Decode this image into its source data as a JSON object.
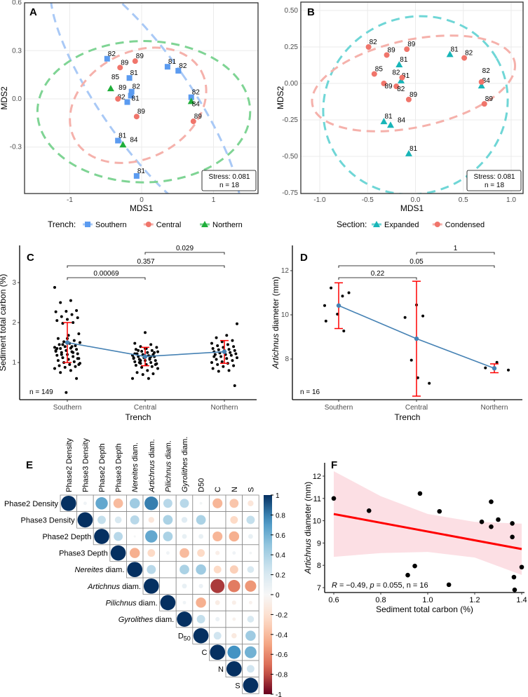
{
  "chart_data": [
    {
      "panel": "A",
      "type": "scatter",
      "xlabel": "MDS1",
      "ylabel": "MDS2",
      "xlim": [
        -1.6,
        1.6
      ],
      "ylim": [
        -0.59,
        0.6
      ],
      "xticks": [
        "-1",
        "0",
        "1"
      ],
      "xtick_values": [
        -1,
        0,
        1
      ],
      "yticks": [
        "-0.3",
        "0.0",
        "0.3",
        "0.6"
      ],
      "ytick_values": [
        -0.3,
        0,
        0.3,
        0.6
      ],
      "legend_title": "Trench:",
      "legend_position": "bottom",
      "stress_text": "Stress: 0.081",
      "n_text": "n = 18",
      "groups": [
        {
          "name": "Southern",
          "color": "#5b9bf0",
          "ellipse_color": "#a9c9f6",
          "marker": "square",
          "ellipse": {
            "cx": 0.05,
            "cy": 0.0,
            "rx": 0.62,
            "ry": 0.95,
            "angle_deg": -35
          },
          "points": [
            {
              "x": -0.48,
              "y": 0.25,
              "label": "82"
            },
            {
              "x": -0.17,
              "y": 0.13,
              "label": "81"
            },
            {
              "x": 0.36,
              "y": 0.2,
              "label": "81"
            },
            {
              "x": 0.51,
              "y": 0.175,
              "label": "82"
            },
            {
              "x": -0.14,
              "y": 0.045,
              "label": "82"
            },
            {
              "x": -0.15,
              "y": 0.02,
              "label": "81"
            },
            {
              "x": -0.2,
              "y": -0.02,
              "label": "82"
            },
            {
              "x": 0.69,
              "y": 0.01,
              "label": "82"
            },
            {
              "x": -0.33,
              "y": -0.26,
              "label": "81"
            },
            {
              "x": -0.07,
              "y": -0.48,
              "label": "81"
            }
          ]
        },
        {
          "name": "Central",
          "color": "#f0756b",
          "ellipse_color": "#f5b1ab",
          "marker": "circle",
          "ellipse": {
            "cx": -0.05,
            "cy": -0.04,
            "rx": 1.0,
            "ry": 0.33,
            "angle_deg": -28
          },
          "points": [
            {
              "x": -0.3,
              "y": 0.195,
              "label": "89"
            },
            {
              "x": -0.09,
              "y": 0.235,
              "label": "89"
            },
            {
              "x": -0.33,
              "y": 0.0,
              "label": "89"
            },
            {
              "x": -0.07,
              "y": -0.11,
              "label": "89"
            },
            {
              "x": 0.72,
              "y": -0.14,
              "label": "89"
            }
          ]
        },
        {
          "name": "Northern",
          "color": "#1fae3a",
          "ellipse_color": "#7fd494",
          "marker": "triangle",
          "ellipse": {
            "cx": 0.03,
            "cy": -0.08,
            "rx": 1.48,
            "ry": 0.44,
            "angle_deg": 0
          },
          "points": [
            {
              "x": -0.43,
              "y": 0.065,
              "label": "85"
            },
            {
              "x": 0.69,
              "y": -0.015,
              "label": "84"
            },
            {
              "x": -0.26,
              "y": -0.285,
              "label": "84"
            }
          ]
        }
      ]
    },
    {
      "panel": "B",
      "type": "scatter",
      "xlabel": "MDS1",
      "ylabel": "MDS2",
      "xlim": [
        -1.2,
        1.15
      ],
      "ylim": [
        -0.76,
        0.52
      ],
      "xticks": [
        "-1.0",
        "-0.5",
        "0.0",
        "0.5",
        "1.0"
      ],
      "xtick_values": [
        -1,
        -0.5,
        0,
        0.5,
        1
      ],
      "yticks": [
        "-0.75",
        "-0.50",
        "-0.25",
        "0.00",
        "0.25",
        "0.50"
      ],
      "ytick_values": [
        -0.75,
        -0.5,
        -0.25,
        0,
        0.25,
        0.5
      ],
      "legend_title": "Section:",
      "legend_position": "bottom",
      "stress_text": "Stress: 0.081",
      "n_text": "n = 18",
      "groups": [
        {
          "name": "Expanded",
          "color": "#17b5b8",
          "ellipse_color": "#6fd6d6",
          "marker": "triangle",
          "ellipse": {
            "cx": 0.0,
            "cy": -0.15,
            "rx": 0.98,
            "ry": 0.6,
            "angle_deg": -30
          },
          "points": [
            {
              "x": -0.17,
              "y": 0.13,
              "label": "81"
            },
            {
              "x": 0.36,
              "y": 0.2,
              "label": "81"
            },
            {
              "x": -0.15,
              "y": 0.02,
              "label": "81"
            },
            {
              "x": 0.69,
              "y": -0.015,
              "label": "84"
            },
            {
              "x": -0.33,
              "y": -0.26,
              "label": "81"
            },
            {
              "x": -0.26,
              "y": -0.285,
              "label": "84"
            },
            {
              "x": -0.07,
              "y": -0.48,
              "label": "81"
            }
          ]
        },
        {
          "name": "Condensed",
          "color": "#f0756b",
          "ellipse_color": "#f5b1ab",
          "marker": "circle",
          "ellipse": {
            "cx": -0.02,
            "cy": 0.0,
            "rx": 1.08,
            "ry": 0.3,
            "angle_deg": -12
          },
          "points": [
            {
              "x": -0.49,
              "y": 0.25,
              "label": "82"
            },
            {
              "x": -0.3,
              "y": 0.195,
              "label": "89"
            },
            {
              "x": -0.09,
              "y": 0.235,
              "label": "89"
            },
            {
              "x": -0.43,
              "y": 0.065,
              "label": "85"
            },
            {
              "x": -0.14,
              "y": 0.04,
              "label": "82"
            },
            {
              "x": -0.33,
              "y": 0.0,
              "label": "89"
            },
            {
              "x": -0.2,
              "y": -0.02,
              "label": "82"
            },
            {
              "x": -0.07,
              "y": -0.11,
              "label": "89"
            },
            {
              "x": 0.51,
              "y": 0.175,
              "label": "82"
            },
            {
              "x": 0.69,
              "y": 0.01,
              "label": "82"
            },
            {
              "x": 0.72,
              "y": -0.14,
              "label": "89"
            }
          ]
        }
      ]
    },
    {
      "panel": "C",
      "type": "scatter",
      "xlabel": "Trench",
      "ylabel": "Sediment total carbon (%)",
      "ylim": [
        0.1,
        3.85
      ],
      "yticks": [
        "1",
        "2",
        "3"
      ],
      "ytick_values": [
        1,
        2,
        3
      ],
      "categories": [
        "Southern",
        "Central",
        "Northern"
      ],
      "n_text": "n = 149",
      "means": [
        1.5,
        1.15,
        1.27
      ],
      "sd_low": [
        1.0,
        0.92,
        0.98
      ],
      "sd_high": [
        2.0,
        1.38,
        1.55
      ],
      "comparisons": [
        {
          "from": 0,
          "to": 1,
          "p": "0.00069"
        },
        {
          "from": 0,
          "to": 2,
          "p": "0.357"
        },
        {
          "from": 1,
          "to": 2,
          "p": "0.029"
        }
      ],
      "values": [
        [
          2.88,
          2.55,
          2.5,
          2.3,
          2.28,
          2.27,
          2.2,
          2.15,
          2.12,
          2.08,
          2.05,
          2.0,
          1.98,
          1.72,
          1.68,
          1.6,
          1.55,
          1.52,
          1.5,
          1.48,
          1.45,
          1.42,
          1.4,
          1.38,
          1.36,
          1.35,
          1.33,
          1.3,
          1.28,
          1.27,
          1.25,
          1.22,
          1.2,
          1.18,
          1.15,
          1.12,
          1.1,
          1.08,
          1.05,
          1.02,
          1.0,
          0.98,
          0.95,
          0.92,
          0.9,
          0.88,
          0.85,
          0.8,
          0.75,
          0.6,
          0.25,
          1.3,
          1.4,
          1.2,
          1.1,
          1.6,
          1.35,
          1.25,
          1.45,
          0.95
        ],
        [
          1.75,
          1.48,
          1.45,
          1.4,
          1.38,
          1.35,
          1.33,
          1.3,
          1.28,
          1.27,
          1.25,
          1.22,
          1.2,
          1.2,
          1.18,
          1.17,
          1.15,
          1.15,
          1.12,
          1.1,
          1.1,
          1.08,
          1.05,
          1.05,
          1.02,
          1.0,
          0.98,
          0.97,
          0.95,
          0.93,
          0.9,
          0.88,
          0.85,
          0.8,
          0.75,
          0.72,
          0.7,
          0.6,
          0.6,
          1.3,
          1.25,
          1.18,
          1.12,
          1.08,
          1.0,
          0.95,
          1.35,
          1.22,
          1.15,
          1.05
        ],
        [
          1.97,
          1.68,
          1.62,
          1.55,
          1.52,
          1.48,
          1.45,
          1.42,
          1.4,
          1.38,
          1.35,
          1.33,
          1.32,
          1.3,
          1.28,
          1.27,
          1.25,
          1.24,
          1.22,
          1.2,
          1.2,
          1.18,
          1.15,
          1.12,
          1.1,
          1.08,
          1.05,
          1.02,
          1.0,
          0.98,
          0.95,
          0.92,
          0.9,
          0.85,
          0.8,
          0.78,
          0.42,
          1.3,
          1.15
        ]
      ]
    },
    {
      "panel": "D",
      "type": "scatter",
      "xlabel": "Trench",
      "ylabel_italic": "Artichnus",
      "ylabel_rest": " diameter (mm)",
      "ylim": [
        6.0,
        13.0
      ],
      "yticks": [
        "8",
        "10",
        "12"
      ],
      "ytick_values": [
        8,
        10,
        12
      ],
      "categories": [
        "Southern",
        "Central",
        "Northern"
      ],
      "n_text": "n = 16",
      "means": [
        10.42,
        8.92,
        7.58
      ],
      "sd_low": [
        9.38,
        6.32,
        7.38
      ],
      "sd_high": [
        11.45,
        11.52,
        7.78
      ],
      "comparisons": [
        {
          "from": 0,
          "to": 1,
          "p": "0.22"
        },
        {
          "from": 0,
          "to": 2,
          "p": "0.05"
        },
        {
          "from": 1,
          "to": 2,
          "p": "1"
        }
      ],
      "values": [
        [
          10.42,
          10.85,
          11.22,
          11.0,
          10.03,
          9.72,
          9.27
        ],
        [
          10.45,
          9.88,
          9.95,
          7.95,
          6.9,
          7.15
        ],
        [
          7.5,
          7.85,
          7.6
        ]
      ]
    },
    {
      "panel": "E",
      "type": "heatmap",
      "subtype": "correlation-upper",
      "row_labels": [
        [
          "Phase2 Density",
          ""
        ],
        [
          "Phase3 Density",
          ""
        ],
        [
          "Phase2 Depth",
          ""
        ],
        [
          "Phase3 Depth",
          ""
        ],
        [
          "",
          "Nereites",
          " diam."
        ],
        [
          "",
          "Artichnus",
          " diam."
        ],
        [
          "",
          "Pilichnus",
          " diam."
        ],
        [
          "",
          "Gyrolithes",
          " diam."
        ],
        [
          "D",
          "50"
        ],
        [
          "C",
          ""
        ],
        [
          "N",
          ""
        ],
        [
          "S",
          ""
        ]
      ],
      "colorbar_ticks": [
        "1",
        "0.8",
        "0.6",
        "0.4",
        "0.2",
        "0",
        "-0.2",
        "-0.4",
        "-0.6",
        "-0.8",
        "-1"
      ],
      "colorbar_range": [
        -1,
        1
      ],
      "upper": [
        [
          1,
          0.05,
          0.65,
          -0.4,
          0.45,
          0.8,
          0.35,
          0.35,
          0.03,
          -0.42,
          -0.35,
          -0.15
        ],
        [
          1,
          0.3,
          0.2,
          0.35,
          -0.15,
          0.4,
          0.15,
          0.4,
          0,
          -0.25,
          0.3
        ],
        [
          1,
          0.35,
          0.02,
          0.65,
          0.4,
          0.1,
          0.1,
          -0.42,
          -0.45,
          0.1
        ],
        [
          1,
          -0.45,
          -0.25,
          0.05,
          -0.4,
          -0.25,
          -0.08,
          0.05,
          0.03
        ],
        [
          1,
          0.35,
          0,
          0.4,
          0.45,
          -0.25,
          -0.3,
          0.2
        ],
        [
          1,
          0,
          0.1,
          0.08,
          -0.85,
          -0.65,
          -0.55
        ],
        [
          1,
          0.05,
          -0.45,
          -0.1,
          -0.08,
          -0.05
        ],
        [
          1,
          0.3,
          0.08,
          -0.05,
          0.2
        ],
        [
          1,
          0.25,
          -0.12,
          0.45
        ],
        [
          1,
          0.75,
          0.6
        ],
        [
          1,
          0.25
        ],
        [
          1
        ]
      ]
    },
    {
      "panel": "F",
      "type": "scatter",
      "xlabel": "Sediment total carbon (%)",
      "ylabel_italic": "Artichnus",
      "ylabel_rest": " diameter (mm)",
      "xlim": [
        0.56,
        1.41
      ],
      "ylim": [
        6.8,
        12.6
      ],
      "xticks": [
        "0.6",
        "0.8",
        "1.0",
        "1.2",
        "1.4"
      ],
      "xtick_values": [
        0.6,
        0.8,
        1.0,
        1.2,
        1.4
      ],
      "yticks": [
        "7",
        "8",
        "9",
        "10",
        "11",
        "12"
      ],
      "ytick_values": [
        7,
        8,
        9,
        10,
        11,
        12
      ],
      "stat_R": "R",
      "stat_eq1": " = −0.49, ",
      "stat_p": "p",
      "stat_eq2": " = 0.055, n = 16",
      "fit": {
        "x": [
          0.6,
          1.4
        ],
        "y": [
          10.3,
          8.73
        ]
      },
      "ci_band": {
        "x": [
          0.6,
          0.8,
          1.0,
          1.2,
          1.4
        ],
        "lower": [
          8.38,
          8.55,
          8.6,
          8.35,
          7.57
        ],
        "upper": [
          12.22,
          11.1,
          10.3,
          9.95,
          9.87
        ]
      },
      "points": [
        {
          "x": 0.6,
          "y": 11.0
        },
        {
          "x": 0.75,
          "y": 10.45
        },
        {
          "x": 0.967,
          "y": 11.22
        },
        {
          "x": 1.05,
          "y": 10.42
        },
        {
          "x": 0.915,
          "y": 7.56
        },
        {
          "x": 0.945,
          "y": 7.97
        },
        {
          "x": 1.09,
          "y": 7.13
        },
        {
          "x": 1.23,
          "y": 9.95
        },
        {
          "x": 1.27,
          "y": 10.85
        },
        {
          "x": 1.27,
          "y": 9.73
        },
        {
          "x": 1.3,
          "y": 10.05
        },
        {
          "x": 1.36,
          "y": 9.88
        },
        {
          "x": 1.36,
          "y": 9.27
        },
        {
          "x": 1.367,
          "y": 7.47
        },
        {
          "x": 1.37,
          "y": 6.9
        },
        {
          "x": 1.4,
          "y": 7.92
        }
      ]
    }
  ],
  "panel_letters": [
    "A",
    "B",
    "C",
    "D",
    "E",
    "F"
  ]
}
